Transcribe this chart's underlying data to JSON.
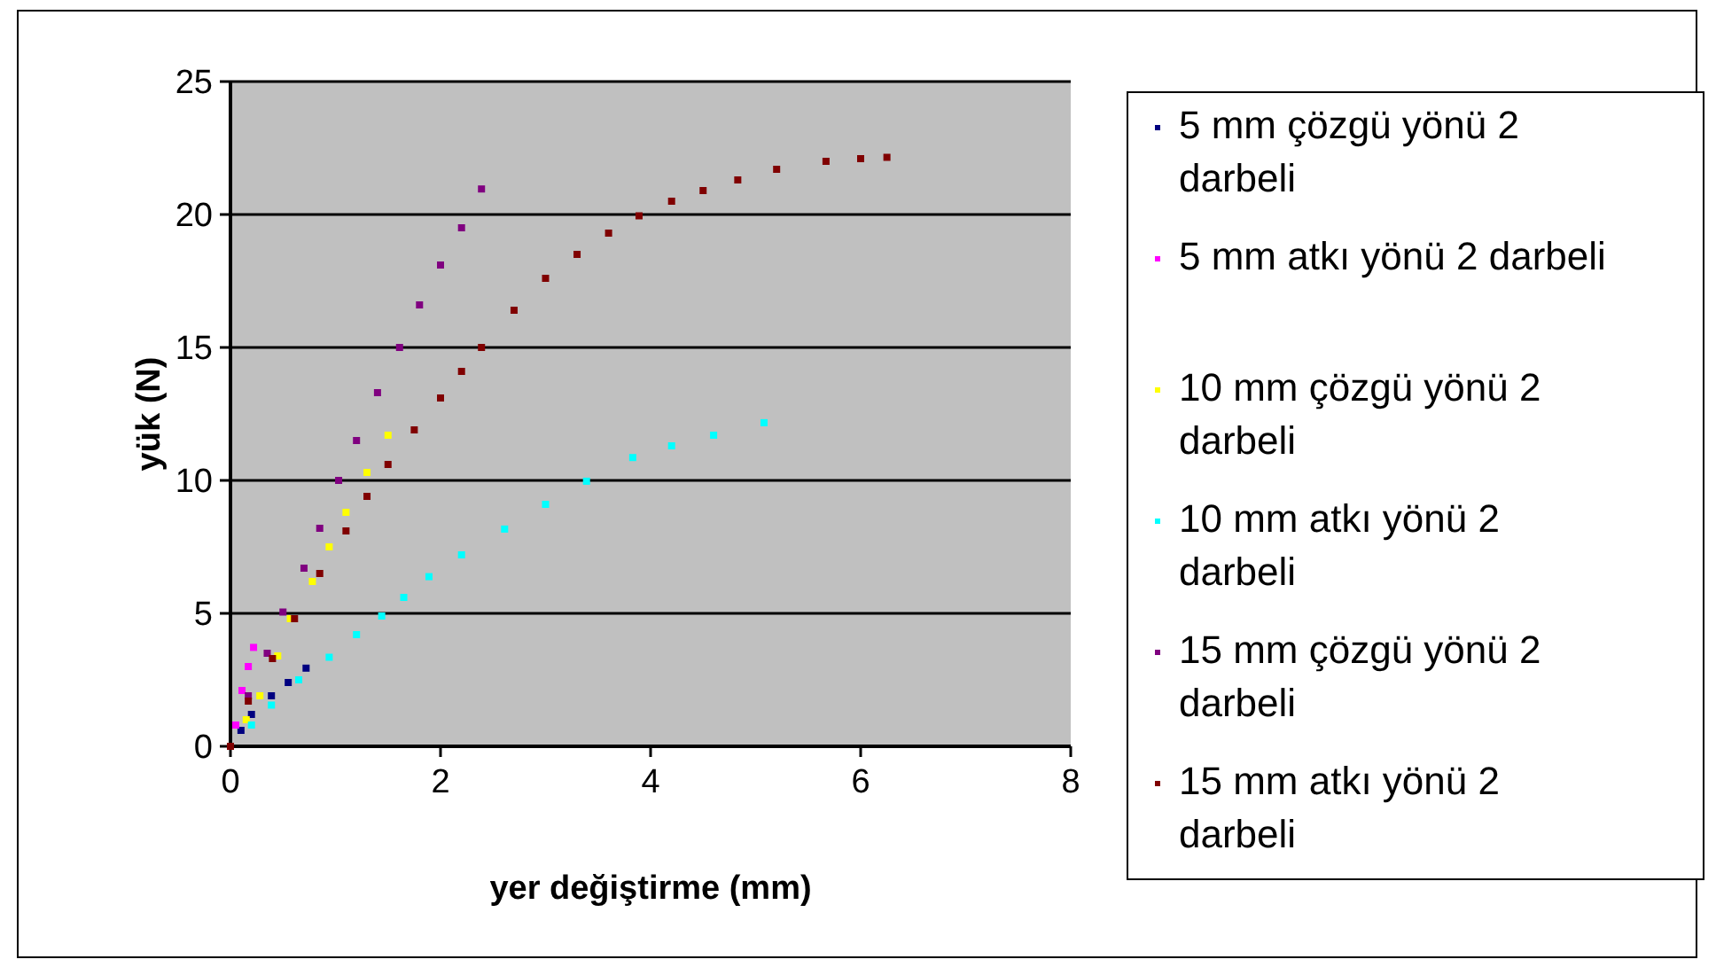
{
  "chart_data": {
    "type": "scatter",
    "xlabel": "yer değiştirme (mm)",
    "ylabel": "yük (N)",
    "xlim": [
      0,
      8
    ],
    "xticks": [
      0,
      2,
      4,
      6,
      8
    ],
    "ylim": [
      0,
      25
    ],
    "yticks": [
      0,
      5,
      10,
      15,
      20,
      25
    ],
    "grid": "y",
    "legend": "right",
    "marker": "square",
    "series": [
      {
        "name": "5 mm çözgü yönü 2 darbeli",
        "color": "#000080",
        "x": [
          0.1,
          0.2,
          0.39,
          0.55,
          0.72
        ],
        "values": [
          0.6,
          1.2,
          1.9,
          2.4,
          2.94
        ]
      },
      {
        "name": "5 mm atkı yönü 2 darbeli",
        "color": "#ff00ff",
        "x": [
          0.05,
          0.11,
          0.17,
          0.22
        ],
        "values": [
          0.8,
          2.1,
          3.0,
          3.72
        ]
      },
      {
        "name": "10 mm çözgü yönü 2 darbeli",
        "color": "#ffff00",
        "x": [
          0.15,
          0.28,
          0.45,
          0.57,
          0.78,
          0.94,
          1.1,
          1.3,
          1.5
        ],
        "values": [
          1.0,
          1.9,
          3.4,
          4.8,
          6.2,
          7.5,
          8.8,
          10.3,
          11.7
        ]
      },
      {
        "name": "10 mm atkı yönü 2 darbeli",
        "color": "#00ffff",
        "x": [
          0.2,
          0.39,
          0.65,
          0.94,
          1.2,
          1.44,
          1.65,
          1.89,
          2.2,
          2.61,
          3.0,
          3.39,
          3.83,
          4.2,
          4.6,
          5.08
        ],
        "values": [
          0.8,
          1.55,
          2.5,
          3.35,
          4.2,
          4.9,
          5.6,
          6.38,
          7.2,
          8.17,
          9.1,
          9.97,
          10.86,
          11.3,
          11.7,
          12.17
        ]
      },
      {
        "name": "15 mm çözgü yönü 2 darbeli",
        "color": "#800080",
        "x": [
          0.17,
          0.35,
          0.5,
          0.7,
          0.85,
          1.03,
          1.2,
          1.4,
          1.61,
          1.8,
          2.0,
          2.2,
          2.39
        ],
        "values": [
          1.9,
          3.5,
          5.05,
          6.7,
          8.2,
          10.0,
          11.5,
          13.3,
          15.0,
          16.6,
          18.1,
          19.5,
          20.96
        ]
      },
      {
        "name": "15 mm atkı yönü 2 darbeli",
        "color": "#800000",
        "x": [
          0,
          0.17,
          0.4,
          0.61,
          0.85,
          1.1,
          1.3,
          1.5,
          1.75,
          2.0,
          2.2,
          2.39,
          2.7,
          3.0,
          3.3,
          3.6,
          3.89,
          4.2,
          4.5,
          4.83,
          5.2,
          5.67,
          6.0,
          6.25
        ],
        "values": [
          0,
          1.7,
          3.3,
          4.8,
          6.5,
          8.1,
          9.4,
          10.6,
          11.9,
          13.1,
          14.1,
          15.0,
          16.4,
          17.6,
          18.5,
          19.3,
          19.95,
          20.5,
          20.9,
          21.3,
          21.7,
          22.0,
          22.1,
          22.15
        ]
      }
    ]
  }
}
